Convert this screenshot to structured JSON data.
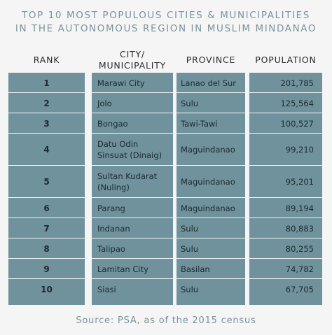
{
  "title_line1": "TOP 10 MOST POPULOUS CITIES & MUNICIPALITIES",
  "title_line2": "IN THE AUTONOMOUS REGION IN MUSLIM MINDANAO",
  "headers": {
    "rank": "RANK",
    "city_line1": "CITY/",
    "city_line2": "MUNICIPALITY",
    "province": "PROVINCE",
    "population": "POPULATION"
  },
  "source": "Source: PSA, as of the 2015 census",
  "colors": {
    "column_fill": "#6f929d",
    "title": "#7b939c",
    "background": "#f5f5f5"
  },
  "chart_data": {
    "type": "table",
    "columns": [
      "RANK",
      "CITY/ MUNICIPALITY",
      "PROVINCE",
      "POPULATION"
    ],
    "rows": [
      {
        "rank": "1",
        "city": "Marawi City",
        "city2": "",
        "province": "Lanao del Sur",
        "population": "201,785"
      },
      {
        "rank": "2",
        "city": "Jolo",
        "city2": "",
        "province": "Sulu",
        "population": "125,564"
      },
      {
        "rank": "3",
        "city": "Bongao",
        "city2": "",
        "province": "Tawi-Tawi",
        "population": "100,527"
      },
      {
        "rank": "4",
        "city": "Datu Odin",
        "city2": "Sinsuat (Dinaig)",
        "province": "Maguindanao",
        "population": "99,210"
      },
      {
        "rank": "5",
        "city": "Sultan Kudarat",
        "city2": "(Nuling)",
        "province": "Maguindanao",
        "population": "95,201"
      },
      {
        "rank": "6",
        "city": "Parang",
        "city2": "",
        "province": "Maguindanao",
        "population": "89,194"
      },
      {
        "rank": "7",
        "city": "Indanan",
        "city2": "",
        "province": "Sulu",
        "population": "80,883"
      },
      {
        "rank": "8",
        "city": "Talipao",
        "city2": "",
        "province": "Sulu",
        "population": "80,255"
      },
      {
        "rank": "9",
        "city": "Lamitan City",
        "city2": "",
        "province": "Basilan",
        "population": "74,782"
      },
      {
        "rank": "10",
        "city": "Siasi",
        "city2": "",
        "province": "Sulu",
        "population": "67,705"
      }
    ]
  }
}
